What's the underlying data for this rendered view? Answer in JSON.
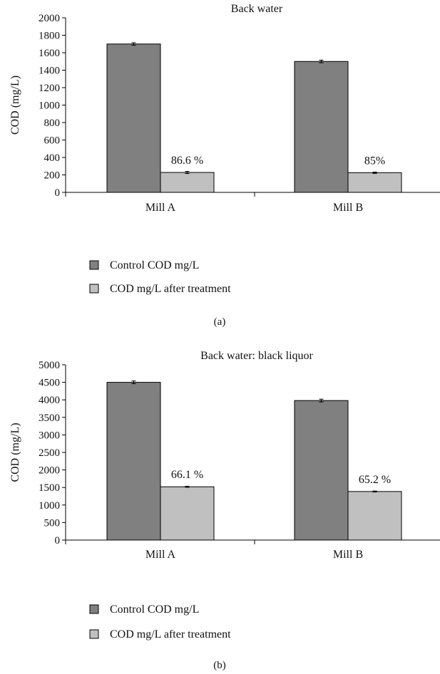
{
  "chart_data": [
    {
      "type": "bar",
      "title": "Back water",
      "ylabel": "COD (mg/L)",
      "xlabel": "",
      "ylim": [
        0,
        2000
      ],
      "yticks": [
        0,
        200,
        400,
        600,
        800,
        1000,
        1200,
        1400,
        1600,
        1800,
        2000
      ],
      "categories": [
        "Mill A",
        "Mill B"
      ],
      "series": [
        {
          "name": "Control COD mg/L",
          "values": [
            1700,
            1500
          ],
          "errors": [
            15,
            15
          ],
          "color": "#808080"
        },
        {
          "name": "COD mg/L after treatment",
          "values": [
            228,
            225
          ],
          "errors": [
            12,
            8
          ],
          "color": "#c0c0c0"
        }
      ],
      "annotations": [
        "86.6 %",
        "85%"
      ],
      "grid": false,
      "legend": "bottom-left",
      "caption": "(a)"
    },
    {
      "type": "bar",
      "title": "Back water: black liquor",
      "ylabel": "COD (mg/L)",
      "xlabel": "",
      "ylim": [
        0,
        5000
      ],
      "yticks": [
        0,
        500,
        1000,
        1500,
        2000,
        2500,
        3000,
        3500,
        4000,
        4500,
        5000
      ],
      "categories": [
        "Mill A",
        "Mill B"
      ],
      "series": [
        {
          "name": "Control COD mg/L",
          "values": [
            4500,
            3980
          ],
          "errors": [
            40,
            40
          ],
          "color": "#808080"
        },
        {
          "name": "COD mg/L after treatment",
          "values": [
            1520,
            1385
          ],
          "errors": [
            15,
            15
          ],
          "color": "#c0c0c0"
        }
      ],
      "annotations": [
        "66.1 %",
        "65.2 %"
      ],
      "grid": false,
      "legend": "bottom-left",
      "caption": "(b)"
    }
  ]
}
